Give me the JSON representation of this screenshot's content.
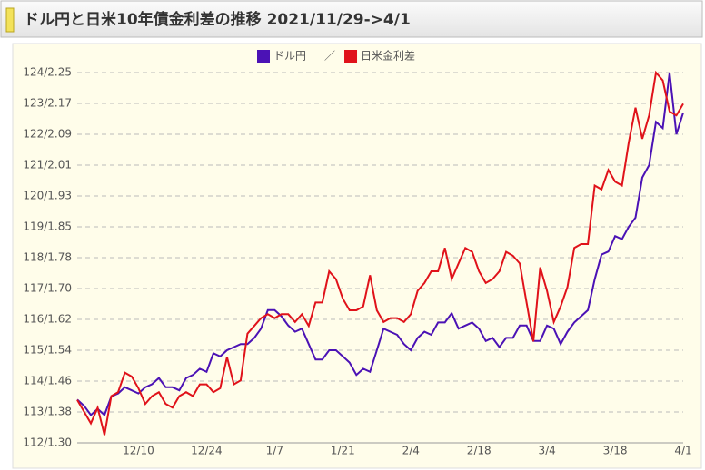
{
  "chart_data": {
    "type": "line",
    "title": "ドル円と日米10年債金利差の推移 2021/11/29->4/1",
    "legend_separator": "／",
    "categories": [
      null,
      null,
      null,
      null,
      null,
      null,
      null,
      null,
      null,
      "12/10",
      null,
      null,
      null,
      null,
      null,
      null,
      null,
      null,
      null,
      "12/24",
      null,
      null,
      null,
      null,
      null,
      null,
      null,
      null,
      null,
      "1/7",
      null,
      null,
      null,
      null,
      null,
      null,
      null,
      null,
      null,
      "1/21",
      null,
      null,
      null,
      null,
      null,
      null,
      null,
      null,
      null,
      "2/4",
      null,
      null,
      null,
      null,
      null,
      null,
      null,
      null,
      null,
      "2/18",
      null,
      null,
      null,
      null,
      null,
      null,
      null,
      null,
      null,
      "3/4",
      null,
      null,
      null,
      null,
      null,
      null,
      null,
      null,
      null,
      "3/18",
      null,
      null,
      null,
      null,
      null,
      null,
      null,
      null,
      null,
      "4/1"
    ],
    "series": [
      {
        "name": "ドル円",
        "color": "#4b12b5",
        "values": [
          113.4,
          113.2,
          112.9,
          113.1,
          112.9,
          113.5,
          113.6,
          113.8,
          113.7,
          113.6,
          113.8,
          113.9,
          114.1,
          113.8,
          113.8,
          113.7,
          114.1,
          114.2,
          114.4,
          114.3,
          114.9,
          114.8,
          115.0,
          115.1,
          115.2,
          115.2,
          115.4,
          115.7,
          116.3,
          116.3,
          116.1,
          115.8,
          115.6,
          115.7,
          115.2,
          114.7,
          114.7,
          115.0,
          115.0,
          114.8,
          114.6,
          114.2,
          114.4,
          114.3,
          115.0,
          115.7,
          115.6,
          115.5,
          115.2,
          115.0,
          115.4,
          115.6,
          115.5,
          115.9,
          115.9,
          116.2,
          115.7,
          115.8,
          115.9,
          115.7,
          115.3,
          115.4,
          115.1,
          115.4,
          115.4,
          115.8,
          115.8,
          115.3,
          115.3,
          115.8,
          115.7,
          115.2,
          115.6,
          115.9,
          116.1,
          116.3,
          117.3,
          118.1,
          118.2,
          118.7,
          118.6,
          119.0,
          119.3,
          120.6,
          121.0,
          122.4,
          122.2,
          124.0,
          122.0,
          122.7
        ]
      },
      {
        "name": "日米金利差",
        "color": "#e0121a",
        "axis": "y2",
        "values": [
          1.41,
          1.38,
          1.35,
          1.39,
          1.32,
          1.42,
          1.43,
          1.48,
          1.47,
          1.44,
          1.4,
          1.42,
          1.43,
          1.4,
          1.39,
          1.42,
          1.43,
          1.42,
          1.45,
          1.45,
          1.43,
          1.44,
          1.52,
          1.45,
          1.46,
          1.58,
          1.6,
          1.62,
          1.63,
          1.62,
          1.63,
          1.63,
          1.61,
          1.63,
          1.6,
          1.66,
          1.66,
          1.74,
          1.72,
          1.67,
          1.64,
          1.64,
          1.65,
          1.73,
          1.64,
          1.61,
          1.62,
          1.62,
          1.61,
          1.63,
          1.69,
          1.71,
          1.74,
          1.74,
          1.8,
          1.72,
          1.76,
          1.8,
          1.79,
          1.74,
          1.71,
          1.72,
          1.74,
          1.79,
          1.78,
          1.76,
          1.66,
          1.56,
          1.75,
          1.69,
          1.61,
          1.65,
          1.7,
          1.8,
          1.81,
          1.81,
          1.96,
          1.95,
          2.0,
          1.97,
          1.96,
          2.07,
          2.16,
          2.08,
          2.14,
          2.25,
          2.23,
          2.15,
          2.14,
          2.17
        ]
      }
    ],
    "ylim": [
      112,
      124
    ],
    "y2lim": [
      1.3,
      2.25
    ],
    "yticks": [
      {
        "value": 112,
        "label": "112/1.30"
      },
      {
        "value": 113,
        "label": "113/1.38"
      },
      {
        "value": 114,
        "label": "114/1.46"
      },
      {
        "value": 115,
        "label": "115/1.54"
      },
      {
        "value": 116,
        "label": "116/1.62"
      },
      {
        "value": 117,
        "label": "117/1.70"
      },
      {
        "value": 118,
        "label": "118/1.78"
      },
      {
        "value": 119,
        "label": "119/1.85"
      },
      {
        "value": 120,
        "label": "120/1.93"
      },
      {
        "value": 121,
        "label": "121/2.01"
      },
      {
        "value": 122,
        "label": "122/2.09"
      },
      {
        "value": 123,
        "label": "123/2.17"
      },
      {
        "value": 124,
        "label": "124/2.25"
      }
    ],
    "grid": true
  }
}
